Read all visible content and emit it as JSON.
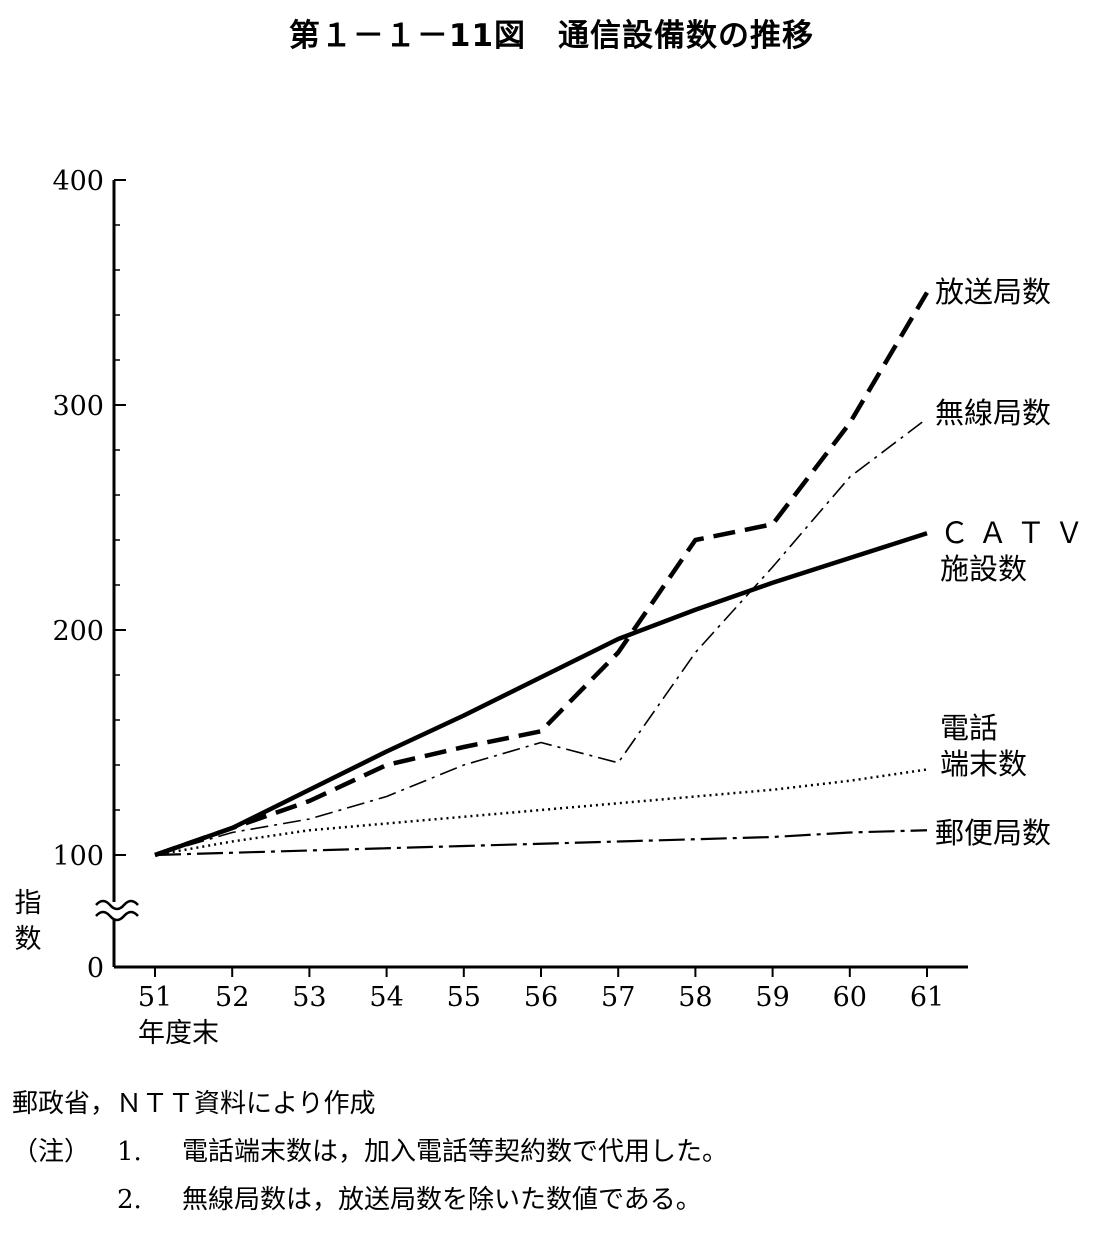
{
  "title": "第１－１－11図　通信設備数の推移",
  "chart_data": {
    "type": "line",
    "title": "第１－１－11図　通信設備数の推移",
    "ylabel": "指数",
    "xlabel": "年度末",
    "categories": [
      "51",
      "52",
      "53",
      "54",
      "55",
      "56",
      "57",
      "58",
      "59",
      "60",
      "61"
    ],
    "ylim": [
      0,
      400
    ],
    "yticks": [
      "0",
      "100",
      "200",
      "300",
      "400"
    ],
    "axis_break": "0〜100",
    "series": [
      {
        "name": "放送局数",
        "style": "dashed-thick",
        "values": [
          100,
          112,
          124,
          140,
          148,
          155,
          190,
          240,
          247,
          292,
          350
        ]
      },
      {
        "name": "無線局数",
        "style": "dash-dot",
        "values": [
          100,
          110,
          116,
          126,
          140,
          150,
          141,
          190,
          228,
          268,
          294
        ]
      },
      {
        "name": "ＣＡＴＶ施設数",
        "style": "solid-thick",
        "values": [
          100,
          112,
          129,
          146,
          162,
          179,
          196,
          209,
          221,
          232,
          243
        ]
      },
      {
        "name": "電話端末数",
        "style": "dotted",
        "values": [
          100,
          106,
          111,
          114,
          117,
          120,
          123,
          126,
          129,
          133,
          138
        ]
      },
      {
        "name": "郵便局数",
        "style": "long-dash-dot",
        "values": [
          100,
          101,
          102,
          103,
          104,
          105,
          106,
          107,
          108,
          110,
          111
        ]
      }
    ],
    "series_labels": [
      {
        "lines": [
          "放送局数"
        ]
      },
      {
        "lines": [
          "無線局数"
        ]
      },
      {
        "lines": [
          "Ｃ Ａ Ｔ Ｖ",
          "施設数"
        ]
      },
      {
        "lines": [
          "電話",
          "端末数"
        ]
      },
      {
        "lines": [
          "郵便局数"
        ]
      }
    ]
  },
  "source": "郵政省，ＮＴＴ資料により作成",
  "notes": {
    "prefix": "（注）",
    "items": [
      {
        "num": "1.",
        "text": "電話端末数は，加入電話等契約数で代用した。"
      },
      {
        "num": "2.",
        "text": "無線局数は，放送局数を除いた数値である。"
      }
    ]
  }
}
